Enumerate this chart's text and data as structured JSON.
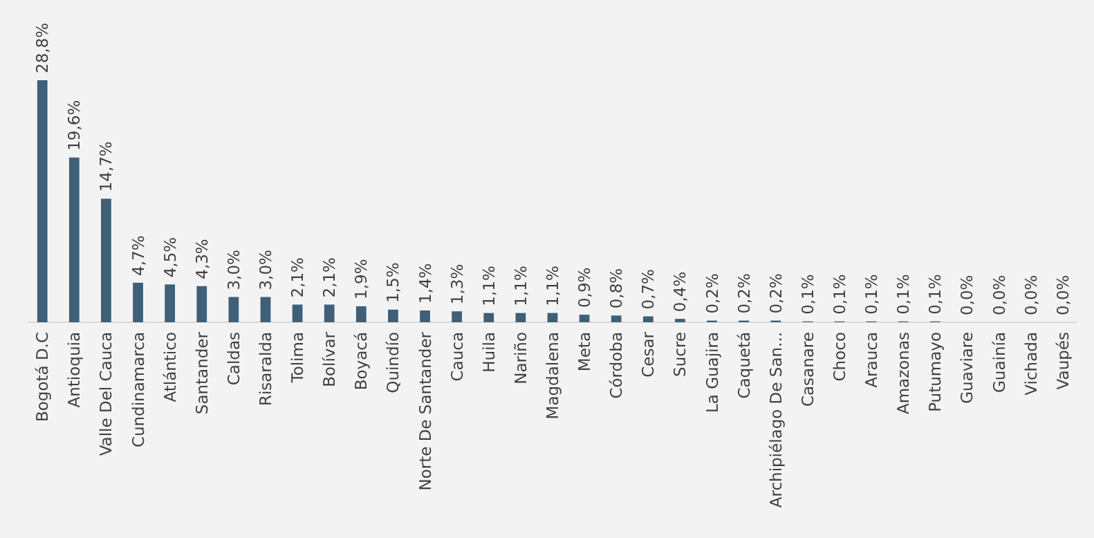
{
  "chart_data": {
    "type": "bar",
    "categories": [
      "Bogotá D.C",
      "Antioquia",
      "Valle Del Cauca",
      "Cundinamarca",
      "Atlántico",
      "Santander",
      "Caldas",
      "Risaralda",
      "Tolima",
      "Bolívar",
      "Boyacá",
      "Quindío",
      "Norte De Santander",
      "Cauca",
      "Huila",
      "Nariño",
      "Magdalena",
      "Meta",
      "Córdoba",
      "Cesar",
      "Sucre",
      "La Guajira",
      "Caquetá",
      "Archipiélago De San...",
      "Casanare",
      "Choco",
      "Arauca",
      "Amazonas",
      "Putumayo",
      "Guaviare",
      "Guainía",
      "Vichada",
      "Vaupés"
    ],
    "values": [
      28.8,
      19.6,
      14.7,
      4.7,
      4.5,
      4.3,
      3.0,
      3.0,
      2.1,
      2.1,
      1.9,
      1.5,
      1.4,
      1.3,
      1.1,
      1.1,
      1.1,
      0.9,
      0.8,
      0.7,
      0.4,
      0.2,
      0.2,
      0.2,
      0.1,
      0.1,
      0.1,
      0.1,
      0.1,
      0.0,
      0.0,
      0.0,
      0.0
    ],
    "value_labels": [
      "28,8%",
      "19,6%",
      "14,7%",
      "4,7%",
      "4,5%",
      "4,3%",
      "3,0%",
      "3,0%",
      "2,1%",
      "2,1%",
      "1,9%",
      "1,5%",
      "1,4%",
      "1,3%",
      "1,1%",
      "1,1%",
      "1,1%",
      "0,9%",
      "0,8%",
      "0,7%",
      "0,4%",
      "0,2%",
      "0,2%",
      "0,2%",
      "0,1%",
      "0,1%",
      "0,1%",
      "0,1%",
      "0,1%",
      "0,0%",
      "0,0%",
      "0,0%",
      "0,0%"
    ],
    "color": "#3e6079"
  }
}
